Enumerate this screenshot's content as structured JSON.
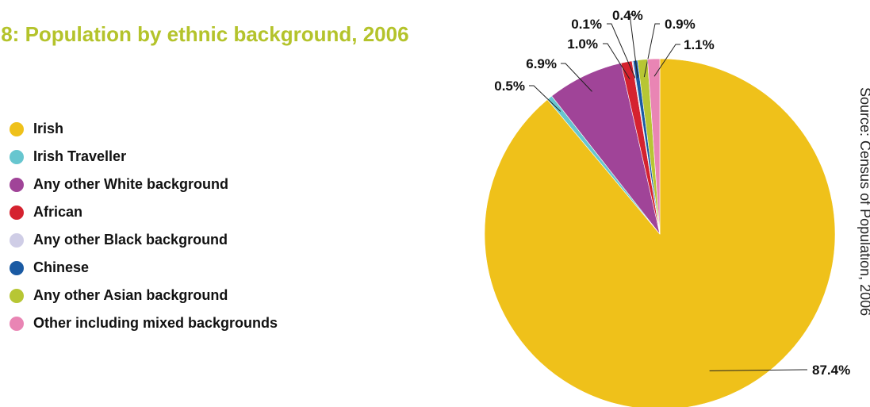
{
  "title": ".8: Population by ethnic background, 2006",
  "source": "Source: Census of Population, 2006",
  "chart_data": {
    "type": "pie",
    "title": ".8: Population by ethnic background, 2006",
    "unit": "%",
    "legend_position": "left",
    "slices": [
      {
        "name": "Irish",
        "value": 87.4,
        "label": "87.4%",
        "color": "#efc11a"
      },
      {
        "name": "Irish Traveller",
        "value": 0.5,
        "label": "0.5%",
        "color": "#67c6cf"
      },
      {
        "name": "Any other White background",
        "value": 6.9,
        "label": "6.9%",
        "color": "#a04498"
      },
      {
        "name": "African",
        "value": 1.0,
        "label": "1.0%",
        "color": "#d5222f"
      },
      {
        "name": "Any other Black background",
        "value": 0.1,
        "label": "0.1%",
        "color": "#cfcde6"
      },
      {
        "name": "Chinese",
        "value": 0.4,
        "label": "0.4%",
        "color": "#1a5aa3"
      },
      {
        "name": "Any other Asian background",
        "value": 0.9,
        "label": "0.9%",
        "color": "#b7c634"
      },
      {
        "name": "Other including mixed backgrounds",
        "value": 1.1,
        "label": "1.1%",
        "color": "#e985b4"
      }
    ]
  }
}
